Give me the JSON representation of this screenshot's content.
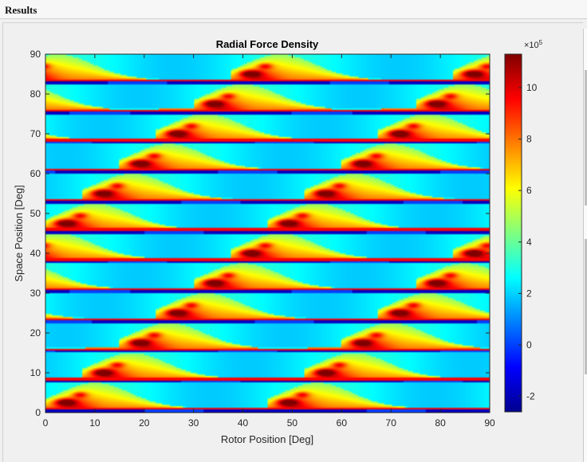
{
  "window": {
    "title": "Results"
  },
  "chart_data": {
    "type": "heatmap",
    "title": "Radial Force Density",
    "xlabel": "Rotor Position [Deg]",
    "ylabel": "Space Position [Deg]",
    "xlim": [
      0,
      90
    ],
    "ylim": [
      0,
      90
    ],
    "xticks": [
      0,
      10,
      20,
      30,
      40,
      50,
      60,
      70,
      80,
      90
    ],
    "yticks": [
      0,
      10,
      20,
      30,
      40,
      50,
      60,
      70,
      80,
      90
    ],
    "colorbar": {
      "colormap": "jet",
      "range": [
        -2.6,
        11.3
      ],
      "ticks": [
        -2,
        0,
        2,
        4,
        6,
        8,
        10
      ],
      "exponent_label": "×10",
      "exponent_power": "5"
    },
    "pattern": {
      "slot_pitch_space_deg": 7.5,
      "period_rotor_deg": 45,
      "shift_rotor_per_slot_deg": 7.5,
      "peak_value": 10.5,
      "background_value": 2.5,
      "min_value": -2.5
    }
  }
}
